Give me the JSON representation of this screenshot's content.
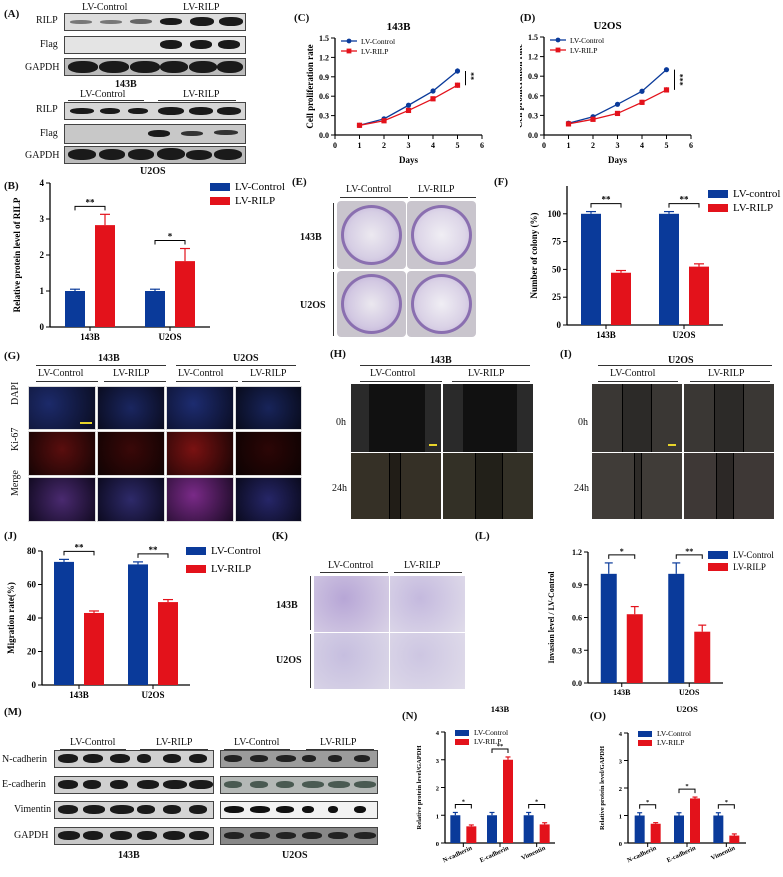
{
  "colors": {
    "control": "#0a3a9a",
    "rilp": "#e3121b"
  },
  "panels": {
    "A": {
      "label": "(A)",
      "group_labels": [
        "LV-Control",
        "LV-RILP"
      ],
      "cell_lines": [
        "143B",
        "U2OS"
      ],
      "rows": [
        "RILP",
        "Flag",
        "GAPDH"
      ]
    },
    "B": {
      "label": "(B)"
    },
    "C": {
      "label": "(C)"
    },
    "D": {
      "label": "(D)"
    },
    "E": {
      "label": "(E)",
      "group_labels": [
        "LV-Control",
        "LV-RILP"
      ],
      "row_labels": [
        "143B",
        "U2OS"
      ]
    },
    "F": {
      "label": "(F)"
    },
    "G": {
      "label": "(G)",
      "cell_lines": [
        "143B",
        "U2OS"
      ],
      "group_labels": [
        "LV-Control",
        "LV-RILP",
        "LV-Control",
        "LV-RILP"
      ],
      "row_labels": [
        "DAPI",
        "Ki-67",
        "Merge"
      ]
    },
    "H": {
      "label": "(H)",
      "title": "143B",
      "group_labels": [
        "LV-Control",
        "LV-RILP"
      ],
      "row_labels": [
        "0h",
        "24h"
      ]
    },
    "I": {
      "label": "(I)",
      "title": "U2OS",
      "group_labels": [
        "LV-Control",
        "LV-RILP"
      ],
      "row_labels": [
        "0h",
        "24h"
      ]
    },
    "J": {
      "label": "(J)"
    },
    "K": {
      "label": "(K)",
      "group_labels": [
        "LV-Control",
        "LV-RILP"
      ],
      "row_labels": [
        "143B",
        "U2OS"
      ]
    },
    "L": {
      "label": "(L)"
    },
    "M": {
      "label": "(M)",
      "group_labels": [
        "LV-Control",
        "LV-RILP"
      ],
      "cell_lines": [
        "143B",
        "U2OS"
      ],
      "rows": [
        "N-cadherin",
        "E-cadherin",
        "Vimentin",
        "GAPDH"
      ]
    },
    "N": {
      "label": "(N)"
    },
    "O": {
      "label": "(O)"
    }
  },
  "chart_data": [
    {
      "panel": "B",
      "type": "bar",
      "title": "",
      "categories": [
        "143B",
        "U2OS"
      ],
      "series": [
        {
          "name": "LV-Control",
          "values": [
            1.0,
            1.0
          ],
          "errors": [
            0.05,
            0.05
          ]
        },
        {
          "name": "LV-RILP",
          "values": [
            2.83,
            1.83
          ],
          "errors": [
            0.3,
            0.35
          ]
        }
      ],
      "significance": [
        "**",
        "*"
      ],
      "xlabel": "",
      "ylabel": "Relative protein level of RILP",
      "ylim": [
        0,
        4
      ],
      "yticks": [
        0,
        1,
        2,
        3,
        4
      ],
      "legend_position": "right",
      "grid": false
    },
    {
      "panel": "C",
      "type": "line",
      "title": "143B",
      "x": [
        1,
        2,
        3,
        4,
        5
      ],
      "series": [
        {
          "name": "LV-Control",
          "values": [
            0.15,
            0.25,
            0.46,
            0.68,
            0.99
          ],
          "errors": [
            0.02,
            0.02,
            0.03,
            0.03,
            0.04
          ]
        },
        {
          "name": "LV-RILP",
          "values": [
            0.15,
            0.22,
            0.38,
            0.56,
            0.77
          ],
          "errors": [
            0.02,
            0.02,
            0.03,
            0.03,
            0.04
          ]
        }
      ],
      "significance": "**",
      "xlabel": "Days",
      "ylabel": "Cell proliferation rate",
      "xlim": [
        0,
        6
      ],
      "xticks": [
        0,
        1,
        2,
        3,
        4,
        5,
        6
      ],
      "ylim": [
        0,
        1.5
      ],
      "yticks": [
        "0.0",
        "0.3",
        "0.6",
        "0.9",
        "1.2",
        "1.5"
      ],
      "legend_position": "top-left",
      "grid": false
    },
    {
      "panel": "D",
      "type": "line",
      "title": "U2OS",
      "x": [
        1,
        2,
        3,
        4,
        5
      ],
      "series": [
        {
          "name": "LV-Control",
          "values": [
            0.18,
            0.28,
            0.47,
            0.67,
            1.0
          ],
          "errors": [
            0.02,
            0.02,
            0.02,
            0.03,
            0.03
          ]
        },
        {
          "name": "LV-RILP",
          "values": [
            0.17,
            0.24,
            0.33,
            0.5,
            0.69
          ],
          "errors": [
            0.02,
            0.02,
            0.03,
            0.04,
            0.04
          ]
        }
      ],
      "significance": "***",
      "xlabel": "Days",
      "ylabel": "Cell proliferation rate",
      "xlim": [
        0,
        6
      ],
      "xticks": [
        0,
        1,
        2,
        3,
        4,
        5,
        6
      ],
      "ylim": [
        0,
        1.5
      ],
      "yticks": [
        "0.0",
        "0.3",
        "0.6",
        "0.9",
        "1.2",
        "1.5"
      ],
      "legend_position": "top-left",
      "grid": false
    },
    {
      "panel": "F",
      "type": "bar",
      "title": "",
      "categories": [
        "143B",
        "U2OS"
      ],
      "series": [
        {
          "name": "LV-control",
          "values": [
            100,
            100
          ],
          "errors": [
            2,
            2
          ]
        },
        {
          "name": "LV-RILP",
          "values": [
            47,
            52.5
          ],
          "errors": [
            2,
            2.5
          ]
        }
      ],
      "significance": [
        "**",
        "**"
      ],
      "xlabel": "",
      "ylabel": "Number of colony (%)",
      "ylim": [
        0,
        125
      ],
      "yticks": [
        0,
        25,
        50,
        75,
        100
      ],
      "legend_position": "right",
      "grid": false
    },
    {
      "panel": "J",
      "type": "bar",
      "title": "",
      "categories": [
        "143B",
        "U2OS"
      ],
      "series": [
        {
          "name": "LV-Control",
          "values": [
            73.5,
            72
          ],
          "errors": [
            1.5,
            1.5
          ]
        },
        {
          "name": "LV-RILP",
          "values": [
            43,
            49.5
          ],
          "errors": [
            1.2,
            1.5
          ]
        }
      ],
      "significance": [
        "**",
        "**"
      ],
      "xlabel": "",
      "ylabel": "Migration rate(%)",
      "ylim": [
        0,
        80
      ],
      "yticks": [
        0,
        20,
        40,
        60,
        80
      ],
      "legend_position": "right",
      "grid": false
    },
    {
      "panel": "L",
      "type": "bar",
      "title": "",
      "categories": [
        "143B",
        "U2OS"
      ],
      "series": [
        {
          "name": "LV-Control",
          "values": [
            1.0,
            1.0
          ],
          "errors": [
            0.1,
            0.1
          ]
        },
        {
          "name": "LV-RILP",
          "values": [
            0.63,
            0.47
          ],
          "errors": [
            0.07,
            0.06
          ]
        }
      ],
      "significance": [
        "*",
        "**"
      ],
      "xlabel": "",
      "ylabel": "Invasion level / LV-Control",
      "ylim": [
        0,
        1.2
      ],
      "yticks": [
        "0.0",
        "0.3",
        "0.6",
        "0.9",
        "1.2"
      ],
      "legend_position": "right",
      "grid": false
    },
    {
      "panel": "N",
      "type": "bar",
      "title": "143B",
      "categories": [
        "N-cadherin",
        "E-cadherin",
        "Vimentin"
      ],
      "series": [
        {
          "name": "LV-Control",
          "values": [
            1.0,
            1.0,
            1.0
          ],
          "errors": [
            0.1,
            0.1,
            0.1
          ]
        },
        {
          "name": "LV-RILP",
          "values": [
            0.6,
            3.0,
            0.67
          ],
          "errors": [
            0.05,
            0.1,
            0.06
          ]
        }
      ],
      "significance": [
        "*",
        "**",
        "*"
      ],
      "xlabel": "",
      "ylabel": "Relative protein level/GAPDH",
      "ylim": [
        0,
        4
      ],
      "yticks": [
        0,
        1,
        2,
        3,
        4
      ],
      "legend_position": "top-left",
      "grid": false
    },
    {
      "panel": "O",
      "type": "bar",
      "title": "U2OS",
      "categories": [
        "N-cadherin",
        "E-cadherin",
        "Vimentin"
      ],
      "series": [
        {
          "name": "LV-Control",
          "values": [
            1.0,
            1.0,
            1.0
          ],
          "errors": [
            0.1,
            0.1,
            0.1
          ]
        },
        {
          "name": "LV-RILP",
          "values": [
            0.7,
            1.62,
            0.27
          ],
          "errors": [
            0.04,
            0.05,
            0.06
          ]
        }
      ],
      "significance": [
        "*",
        "*",
        "*"
      ],
      "xlabel": "",
      "ylabel": "Relative protein level/GAPDH",
      "ylim": [
        0,
        4
      ],
      "yticks": [
        0,
        1,
        2,
        3,
        4
      ],
      "legend_position": "top-left",
      "grid": false
    }
  ]
}
